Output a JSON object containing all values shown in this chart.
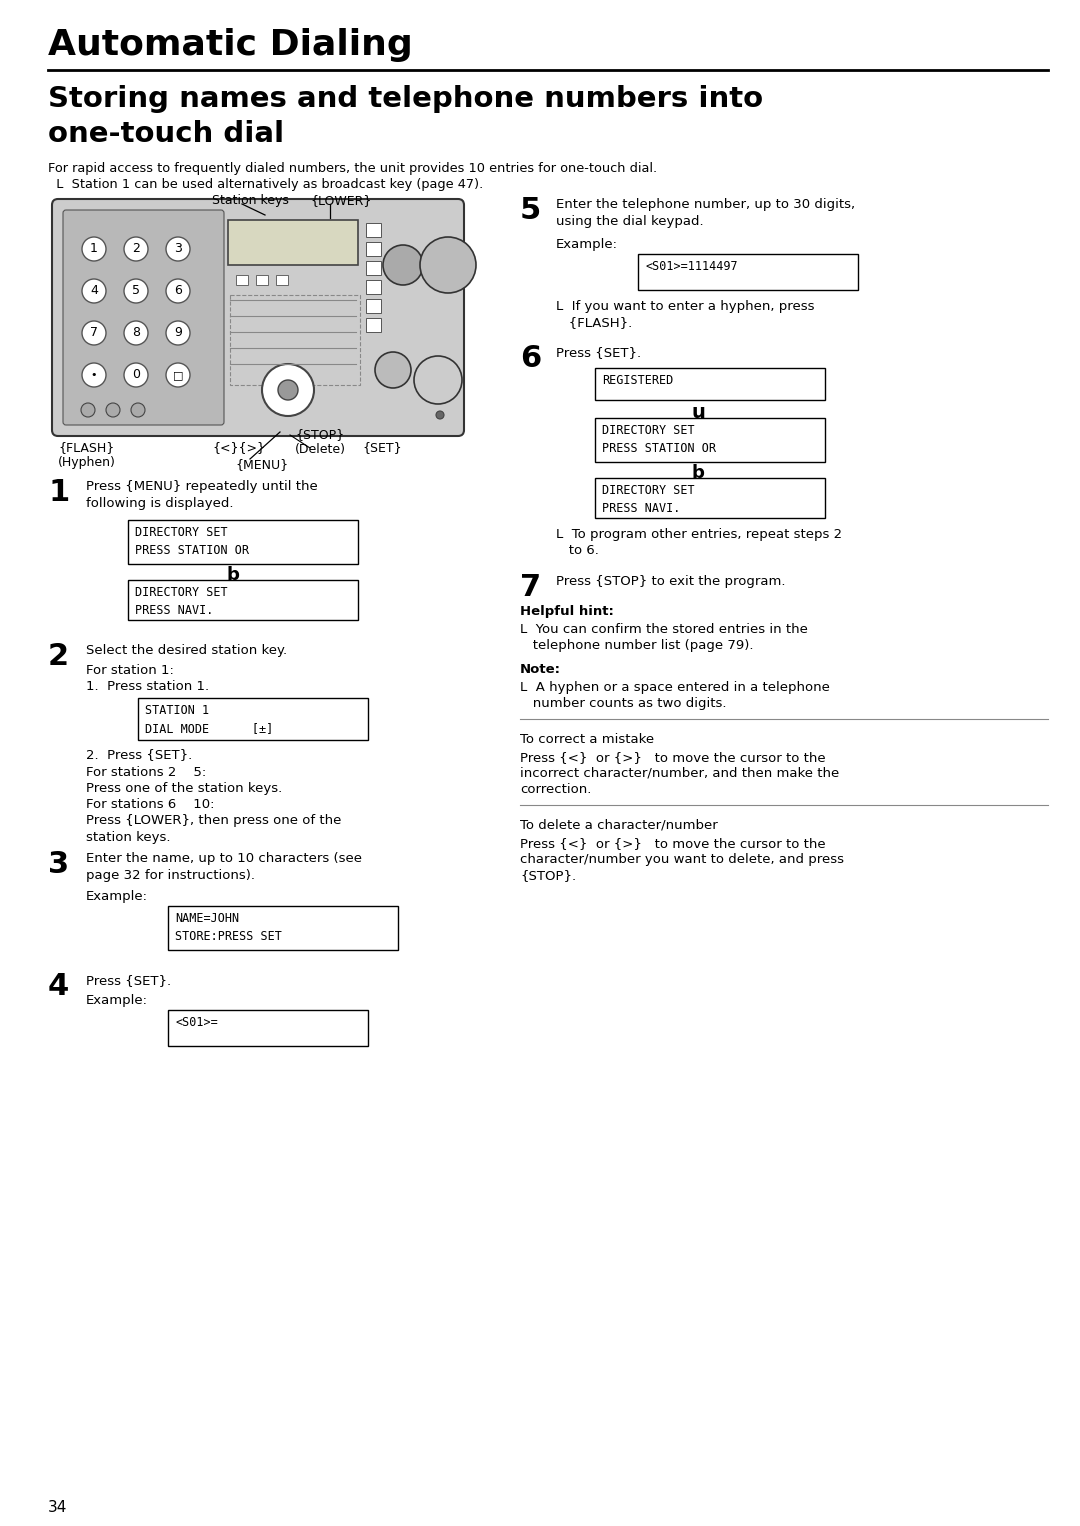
{
  "title": "Automatic Dialing",
  "subtitle_line1": "Storing names and telephone numbers into",
  "subtitle_line2": "one-touch dial",
  "bg_color": "#ffffff",
  "text_color": "#000000",
  "page_number": "34",
  "intro_text1": "For rapid access to frequently dialed numbers, the unit provides 10 entries for one-touch dial.",
  "intro_text2": "  L  Station 1 can be used alternatively as broadcast key (page 47).",
  "step1_num": "1",
  "step1_text": "Press {MENU} repeatedly until the\nfollowing is displayed.",
  "box1a_text": "DIRECTORY SET\nPRESS STATION OR",
  "box1b_text": "DIRECTORY SET\nPRESS NAVI.",
  "step2_num": "2",
  "step2_text": "Select the desired station key.",
  "step2_sub1": "For station 1:",
  "step2_sub2": "1.  Press station 1.",
  "box2_text": "STATION 1\nDIAL MODE      [±]",
  "step2_sub3": "2.  Press {SET}.",
  "step2_sub4": "For stations 2    5:",
  "step2_sub5": "Press one of the station keys.",
  "step2_sub6": "For stations 6    10:",
  "step2_sub7": "Press {LOWER}, then press one of the\nstation keys.",
  "step3_num": "3",
  "step3_text": "Enter the name, up to 10 characters (see\npage 32 for instructions).",
  "step3_example": "Example:",
  "box3_text": "NAME=JOHN\nSTORE:PRESS SET",
  "step4_num": "4",
  "step4_text": "Press {SET}.",
  "step4_example": "Example:",
  "box4_text": "<S01>=",
  "step5_num": "5",
  "step5_text": "Enter the telephone number, up to 30 digits,\nusing the dial keypad.",
  "step5_example": "Example:",
  "box5_text": "<S01>=1114497",
  "step5_sub2_line1": "L  If you want to enter a hyphen, press",
  "step5_sub2_line2": "   {FLASH}.",
  "step6_num": "6",
  "step6_text": "Press {SET}.",
  "box6a_text": "REGISTERED",
  "u_arrow": "u",
  "box6b_text": "DIRECTORY SET\nPRESS STATION OR",
  "b_arrow": "b",
  "box6c_text": "DIRECTORY SET\nPRESS NAVI.",
  "step6_sub_line1": "L  To program other entries, repeat steps 2",
  "step6_sub_line2": "   to 6.",
  "step7_num": "7",
  "step7_text": "Press {STOP} to exit the program.",
  "hint_title": "Helpful hint:",
  "hint_line1": "L  You can confirm the stored entries in the",
  "hint_line2": "   telephone number list (page 79).",
  "note_title": "Note:",
  "note_line1": "L  A hyphen or a space entered in a telephone",
  "note_line2": "   number counts as two digits.",
  "correct_title": "To correct a mistake",
  "correct_line1": "Press {<}  or {>}   to move the cursor to the",
  "correct_line2": "incorrect character/number, and then make the",
  "correct_line3": "correction.",
  "delete_title": "To delete a character/number",
  "delete_line1": "Press {<}  or {>}   to move the cursor to the",
  "delete_line2": "character/number you want to delete, and press",
  "delete_line3": "{STOP}.",
  "label_lower": "{LOWER}",
  "label_station": "Station keys",
  "label_flash": "{FLASH}",
  "label_hyphen": "(Hyphen)",
  "label_nav": "{<}{>}",
  "label_set": "{SET}",
  "label_stop": "{STOP}",
  "label_delete": "(Delete)",
  "label_menu": "{MENU}"
}
